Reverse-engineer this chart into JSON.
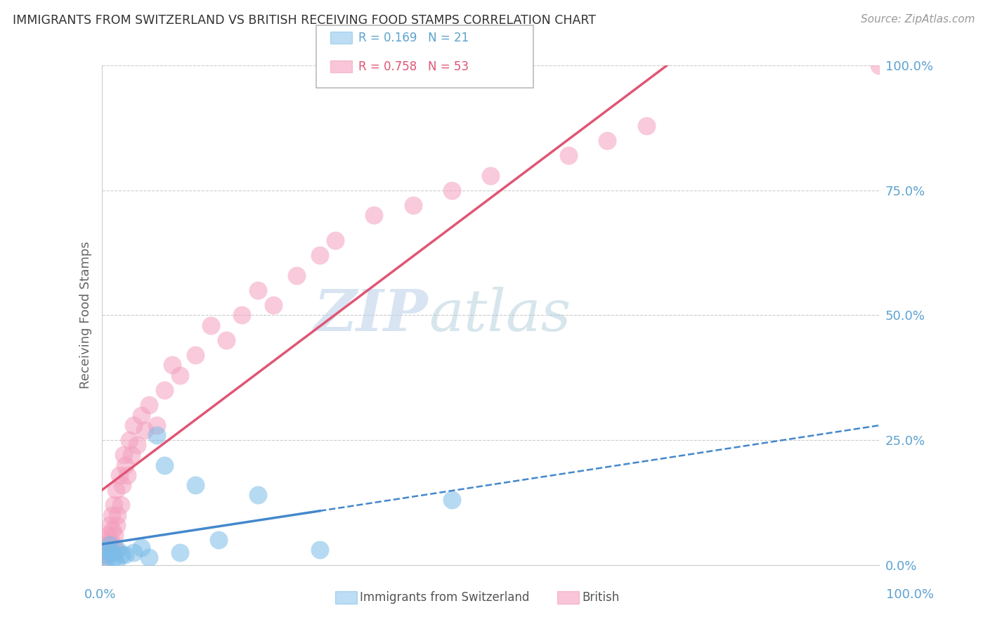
{
  "title": "IMMIGRANTS FROM SWITZERLAND VS BRITISH RECEIVING FOOD STAMPS CORRELATION CHART",
  "source": "Source: ZipAtlas.com",
  "ylabel": "Receiving Food Stamps",
  "ytick_values": [
    0,
    25,
    50,
    75,
    100
  ],
  "legend_swiss": "R = 0.169   N = 21",
  "legend_british": "R = 0.758   N = 53",
  "swiss_color": "#7bbce8",
  "british_color": "#f4a0be",
  "swiss_line_color": "#4488cc",
  "british_line_color": "#e05575",
  "watermark_zip": "ZIP",
  "watermark_atlas": "atlas",
  "xmin": 0,
  "xmax": 100,
  "ymin": 0,
  "ymax": 100,
  "swiss_points_x": [
    0.3,
    0.5,
    0.8,
    1.0,
    1.2,
    1.5,
    1.8,
    2.0,
    2.5,
    3.0,
    4.0,
    5.0,
    6.0,
    7.0,
    8.0,
    10.0,
    12.0,
    15.0,
    20.0,
    28.0,
    45.0
  ],
  "swiss_points_y": [
    2.0,
    1.0,
    3.0,
    4.0,
    2.5,
    1.5,
    0.5,
    3.0,
    2.0,
    2.0,
    2.5,
    3.5,
    1.5,
    26.0,
    20.0,
    2.5,
    16.0,
    5.0,
    14.0,
    3.0,
    13.0
  ],
  "british_points_x": [
    0.2,
    0.3,
    0.4,
    0.5,
    0.6,
    0.7,
    0.8,
    0.9,
    1.0,
    1.1,
    1.2,
    1.3,
    1.4,
    1.5,
    1.6,
    1.7,
    1.8,
    1.9,
    2.0,
    2.2,
    2.4,
    2.6,
    2.8,
    3.0,
    3.2,
    3.5,
    3.8,
    4.0,
    4.5,
    5.0,
    5.5,
    6.0,
    7.0,
    8.0,
    9.0,
    10.0,
    12.0,
    14.0,
    16.0,
    18.0,
    20.0,
    22.0,
    25.0,
    28.0,
    30.0,
    35.0,
    40.0,
    45.0,
    50.0,
    60.0,
    65.0,
    70.0,
    100.0
  ],
  "british_points_y": [
    1.5,
    3.0,
    5.0,
    2.0,
    4.0,
    6.0,
    3.0,
    2.5,
    8.0,
    5.0,
    10.0,
    7.0,
    4.0,
    12.0,
    6.0,
    3.0,
    15.0,
    8.0,
    10.0,
    18.0,
    12.0,
    16.0,
    22.0,
    20.0,
    18.0,
    25.0,
    22.0,
    28.0,
    24.0,
    30.0,
    27.0,
    32.0,
    28.0,
    35.0,
    40.0,
    38.0,
    42.0,
    48.0,
    45.0,
    50.0,
    55.0,
    52.0,
    58.0,
    62.0,
    65.0,
    70.0,
    72.0,
    75.0,
    78.0,
    82.0,
    85.0,
    88.0,
    100.0
  ]
}
